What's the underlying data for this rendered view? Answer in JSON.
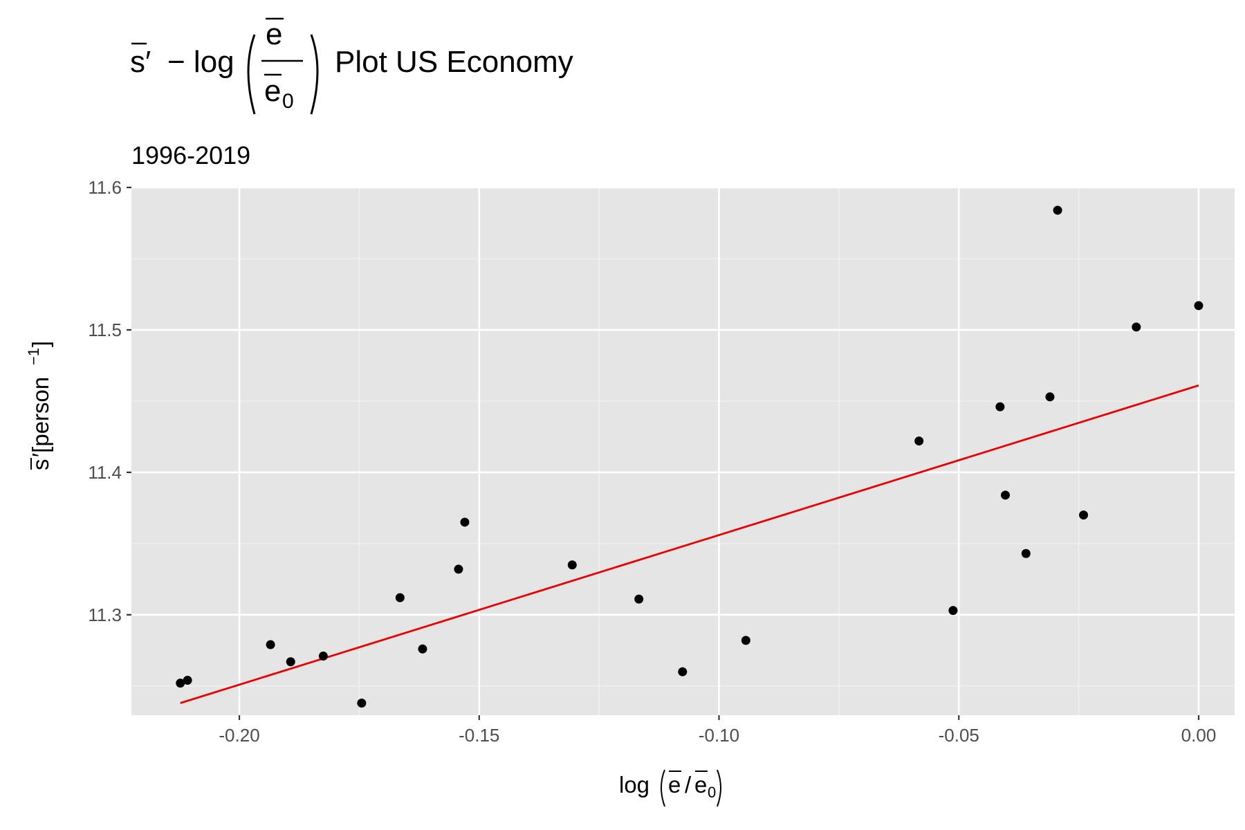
{
  "chart_data": {
    "type": "scatter",
    "title_suffix": "Plot US Economy",
    "subtitle": "1996-2019",
    "xlabel": "log(ē/ē0)",
    "ylabel": "s̄′[person⁻¹]",
    "xlim": [
      -0.2225,
      0.0075
    ],
    "ylim": [
      11.2295,
      11.6
    ],
    "x_ticks": [
      -0.2,
      -0.15,
      -0.1,
      -0.05,
      0.0
    ],
    "x_tick_labels": [
      "-0.20",
      "-0.15",
      "-0.10",
      "-0.05",
      "0.00"
    ],
    "y_ticks": [
      11.3,
      11.4,
      11.5,
      11.6
    ],
    "y_tick_labels": [
      "11.3",
      "11.4",
      "11.5",
      "11.6"
    ],
    "grid": true,
    "series": [
      {
        "kind": "points",
        "color": "#000000",
        "points": [
          [
            -0.2123,
            11.252
          ],
          [
            -0.2108,
            11.254
          ],
          [
            -0.1935,
            11.279
          ],
          [
            -0.1893,
            11.267
          ],
          [
            -0.1825,
            11.271
          ],
          [
            -0.1745,
            11.238
          ],
          [
            -0.1665,
            11.312
          ],
          [
            -0.1618,
            11.276
          ],
          [
            -0.1543,
            11.332
          ],
          [
            -0.153,
            11.365
          ],
          [
            -0.1306,
            11.335
          ],
          [
            -0.1167,
            11.311
          ],
          [
            -0.1076,
            11.26
          ],
          [
            -0.0944,
            11.282
          ],
          [
            -0.0583,
            11.422
          ],
          [
            -0.0512,
            11.303
          ],
          [
            -0.0414,
            11.446
          ],
          [
            -0.0403,
            11.384
          ],
          [
            -0.036,
            11.343
          ],
          [
            -0.031,
            11.453
          ],
          [
            -0.0294,
            11.584
          ],
          [
            -0.024,
            11.37
          ],
          [
            -0.013,
            11.502
          ],
          [
            0.0,
            11.517
          ]
        ]
      },
      {
        "kind": "fit-line",
        "color": "#ee0000",
        "x": [
          -0.2123,
          0.0
        ],
        "y": [
          11.238,
          11.461
        ]
      }
    ]
  }
}
